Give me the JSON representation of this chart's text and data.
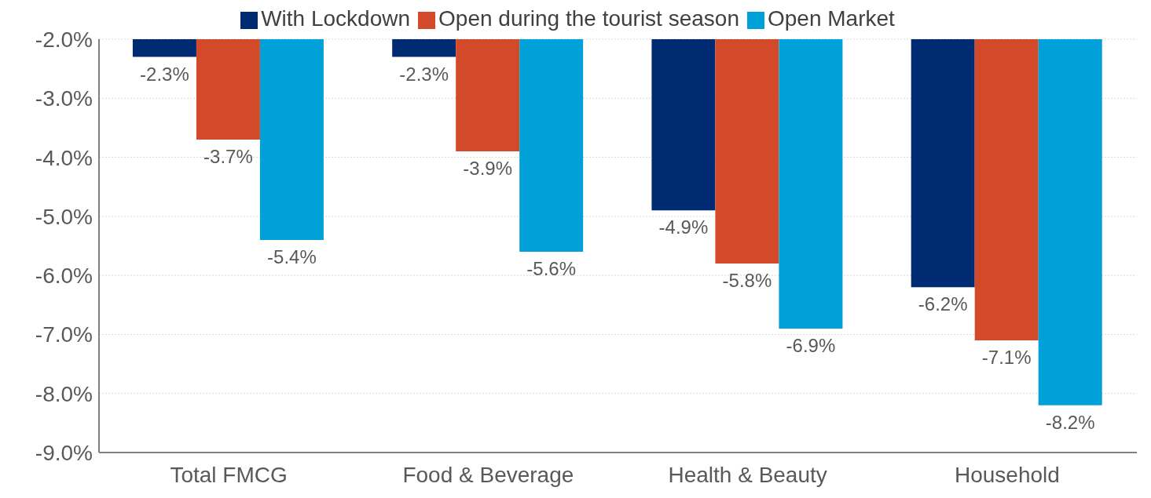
{
  "chart_data": {
    "type": "bar",
    "categories": [
      "Total FMCG",
      "Food & Beverage",
      "Health & Beauty",
      "Household"
    ],
    "series": [
      {
        "name": "With Lockdown",
        "color": "#002b73",
        "values": [
          -2.3,
          -2.3,
          -4.9,
          -6.2
        ],
        "value_labels": [
          "-2.3%",
          "-2.3%",
          "-4.9%",
          "-6.2%"
        ]
      },
      {
        "name": "Open during the tourist season",
        "color": "#d24a2a",
        "values": [
          -3.7,
          -3.9,
          -5.8,
          -7.1
        ],
        "value_labels": [
          "-3.7%",
          "-3.9%",
          "-5.8%",
          "-7.1%"
        ]
      },
      {
        "name": "Open Market",
        "color": "#00a0d8",
        "values": [
          -5.4,
          -5.6,
          -6.9,
          -8.2
        ],
        "value_labels": [
          "-5.4%",
          "-5.6%",
          "-6.9%",
          "-8.2%"
        ]
      }
    ],
    "ylim": [
      -9,
      -2
    ],
    "yticks": [
      {
        "value": -2,
        "label": "-2.0%"
      },
      {
        "value": -3,
        "label": "-3.0%"
      },
      {
        "value": -4,
        "label": "-4.0%"
      },
      {
        "value": -5,
        "label": "-5.0%"
      },
      {
        "value": -6,
        "label": "-6.0%"
      },
      {
        "value": -7,
        "label": "-7.0%"
      },
      {
        "value": -8,
        "label": "-8.0%"
      },
      {
        "value": -9,
        "label": "-9.0%"
      }
    ],
    "grid": "y",
    "legend": "top"
  }
}
